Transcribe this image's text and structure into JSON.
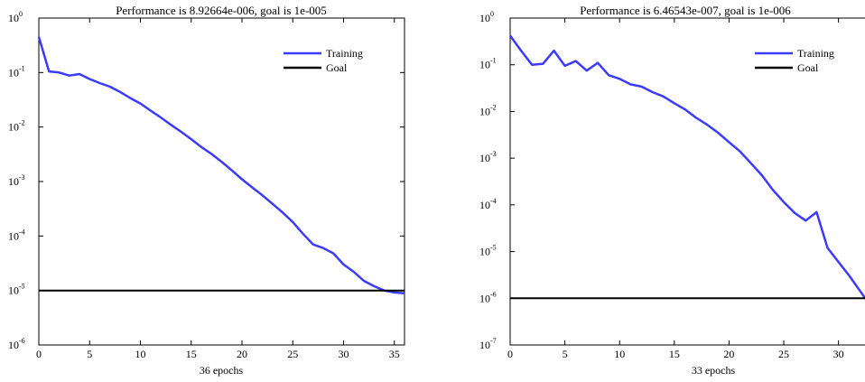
{
  "chart_data": [
    {
      "type": "line",
      "title": "Performance is 8.92664e-006, goal is 1e-005",
      "xlabel": "36 epochs",
      "ylabel": "",
      "yscale": "log",
      "xlim": [
        0,
        36
      ],
      "ylim": [
        1e-06,
        1
      ],
      "xticks": [
        0,
        5,
        10,
        15,
        20,
        25,
        30,
        35
      ],
      "yticks": [
        {
          "mantissa": "10",
          "exp": "-6",
          "value": 1e-06
        },
        {
          "mantissa": "10",
          "exp": "-5",
          "value": 1e-05
        },
        {
          "mantissa": "10",
          "exp": "-4",
          "value": 0.0001
        },
        {
          "mantissa": "10",
          "exp": "-3",
          "value": 0.001
        },
        {
          "mantissa": "10",
          "exp": "-2",
          "value": 0.01
        },
        {
          "mantissa": "10",
          "exp": "-1",
          "value": 0.1
        },
        {
          "mantissa": "10",
          "exp": "0",
          "value": 1
        }
      ],
      "grid": false,
      "legend_position": "top-right",
      "series": [
        {
          "name": "Training",
          "color": "#3b3bff",
          "x": [
            0,
            1,
            2,
            3,
            4,
            5,
            6,
            7,
            8,
            9,
            10,
            11,
            12,
            13,
            14,
            15,
            16,
            17,
            18,
            19,
            20,
            21,
            22,
            23,
            24,
            25,
            26,
            27,
            28,
            29,
            30,
            31,
            32,
            33,
            34,
            35,
            36
          ],
          "y": [
            0.45,
            0.105,
            0.1,
            0.088,
            0.094,
            0.076,
            0.064,
            0.055,
            0.044,
            0.034,
            0.027,
            0.02,
            0.015,
            0.011,
            0.0082,
            0.006,
            0.0043,
            0.0032,
            0.0023,
            0.0016,
            0.0011,
            0.00078,
            0.00056,
            0.00039,
            0.00027,
            0.00018,
            0.00011,
            7e-05,
            6e-05,
            4.8e-05,
            3e-05,
            2.2e-05,
            1.5e-05,
            1.2e-05,
            1e-05,
            9.2e-06,
            8.9e-06
          ]
        },
        {
          "name": "Goal",
          "color": "#000000",
          "x": [
            0,
            36
          ],
          "y": [
            1e-05,
            1e-05
          ]
        }
      ]
    },
    {
      "type": "line",
      "title": "Performance is 6.46543e-007, goal is 1e-006",
      "xlabel": "33 epochs",
      "ylabel": "",
      "yscale": "log",
      "xlim": [
        0,
        33
      ],
      "ylim": [
        1e-07,
        1
      ],
      "xticks": [
        0,
        5,
        10,
        15,
        20,
        25,
        30
      ],
      "yticks": [
        {
          "mantissa": "10",
          "exp": "-7",
          "value": 1e-07
        },
        {
          "mantissa": "10",
          "exp": "-6",
          "value": 1e-06
        },
        {
          "mantissa": "10",
          "exp": "-5",
          "value": 1e-05
        },
        {
          "mantissa": "10",
          "exp": "-4",
          "value": 0.0001
        },
        {
          "mantissa": "10",
          "exp": "-3",
          "value": 0.001
        },
        {
          "mantissa": "10",
          "exp": "-2",
          "value": 0.01
        },
        {
          "mantissa": "10",
          "exp": "-1",
          "value": 0.1
        },
        {
          "mantissa": "10",
          "exp": "0",
          "value": 1
        }
      ],
      "grid": false,
      "legend_position": "top-right",
      "series": [
        {
          "name": "Training",
          "color": "#3b3bff",
          "x": [
            0,
            1,
            2,
            3,
            4,
            5,
            6,
            7,
            8,
            9,
            10,
            11,
            12,
            13,
            14,
            15,
            16,
            17,
            18,
            19,
            20,
            21,
            22,
            23,
            24,
            25,
            26,
            27,
            28,
            29,
            30,
            31,
            32,
            33
          ],
          "y": [
            0.42,
            0.2,
            0.1,
            0.105,
            0.2,
            0.095,
            0.12,
            0.075,
            0.11,
            0.06,
            0.05,
            0.038,
            0.034,
            0.026,
            0.021,
            0.015,
            0.011,
            0.0073,
            0.0052,
            0.0035,
            0.0022,
            0.0014,
            0.00078,
            0.00043,
            0.00021,
            0.000115,
            6.7e-05,
            4.6e-05,
            7e-05,
            1.2e-05,
            6e-06,
            3e-06,
            1.4e-06,
            6.5e-07
          ]
        },
        {
          "name": "Goal",
          "color": "#000000",
          "x": [
            0,
            33
          ],
          "y": [
            1e-06,
            1e-06
          ]
        }
      ]
    }
  ]
}
